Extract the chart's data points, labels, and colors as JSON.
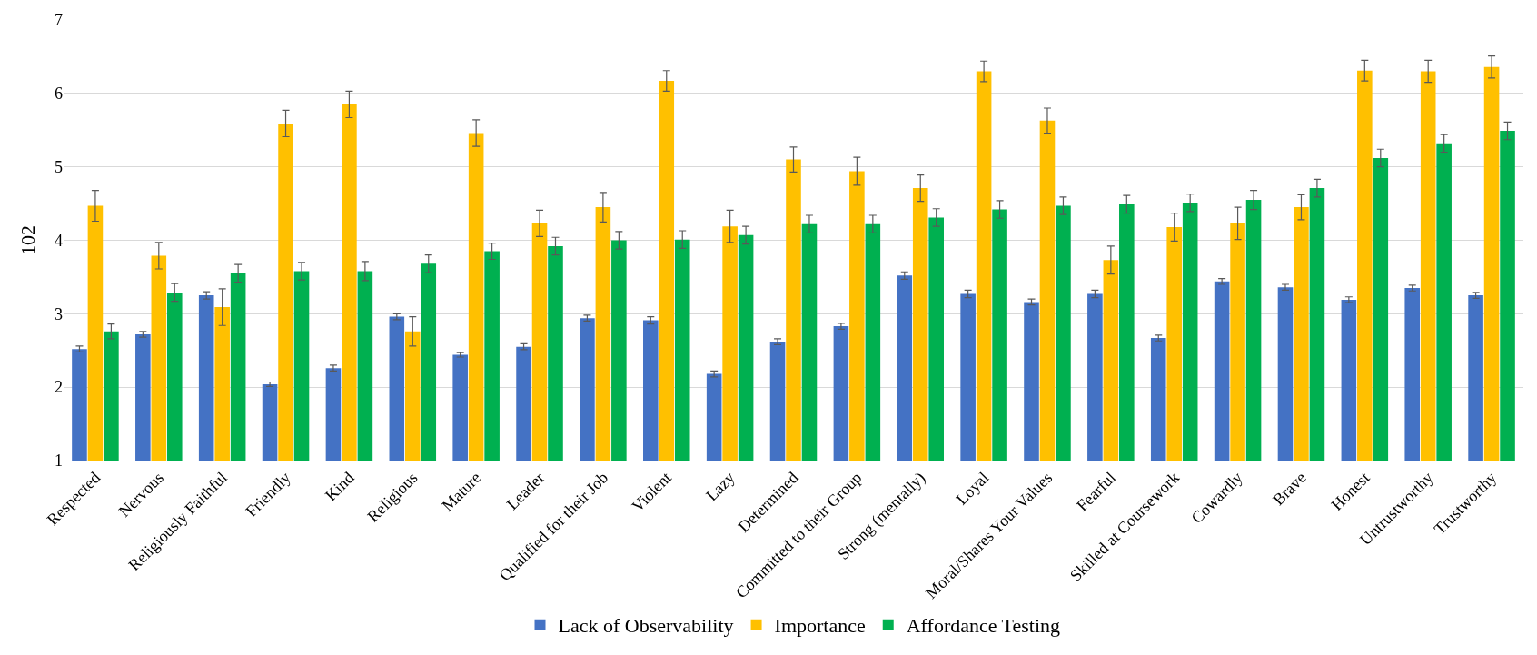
{
  "chart_data": {
    "type": "bar",
    "ylabel": "102",
    "categories": [
      "Respected",
      "Nervous",
      "Religiously Faithful",
      "Friendly",
      "Kind",
      "Religious",
      "Mature",
      "Leader",
      "Qualified for their Job",
      "Violent",
      "Lazy",
      "Determined",
      "Committed to their Group",
      "Strong (mentally)",
      "Loyal",
      "Moral/Shares Your Values",
      "Fearful",
      "Skilled at Coursework",
      "Cowardly",
      "Brave",
      "Honest",
      "Untrustworthy",
      "Trustworthy"
    ],
    "series": [
      {
        "name": "Lack of Observability",
        "color": "#4472c4",
        "values": [
          2.52,
          2.72,
          3.25,
          2.04,
          2.26,
          2.96,
          2.44,
          2.55,
          2.94,
          2.91,
          2.18,
          2.62,
          2.83,
          3.52,
          3.27,
          3.16,
          3.27,
          2.67,
          3.44,
          3.36,
          3.19,
          3.35,
          3.25
        ],
        "errors": [
          0.04,
          0.04,
          0.05,
          0.03,
          0.04,
          0.04,
          0.03,
          0.04,
          0.04,
          0.05,
          0.04,
          0.04,
          0.04,
          0.05,
          0.05,
          0.04,
          0.05,
          0.04,
          0.04,
          0.04,
          0.04,
          0.04,
          0.04
        ]
      },
      {
        "name": "Importance",
        "color": "#ffc000",
        "values": [
          4.47,
          3.79,
          3.09,
          5.59,
          5.85,
          2.76,
          5.46,
          4.23,
          4.45,
          6.17,
          4.19,
          5.1,
          4.94,
          4.71,
          6.3,
          5.63,
          3.73,
          4.18,
          4.23,
          4.45,
          6.31,
          6.3,
          6.36
        ],
        "errors": [
          0.21,
          0.18,
          0.25,
          0.18,
          0.18,
          0.2,
          0.18,
          0.18,
          0.2,
          0.14,
          0.22,
          0.17,
          0.19,
          0.18,
          0.14,
          0.17,
          0.19,
          0.19,
          0.22,
          0.17,
          0.14,
          0.15,
          0.15
        ]
      },
      {
        "name": "Affordance Testing",
        "color": "#00b050",
        "values": [
          2.76,
          3.29,
          3.55,
          3.58,
          3.58,
          3.68,
          3.85,
          3.92,
          4.0,
          4.01,
          4.07,
          4.22,
          4.22,
          4.31,
          4.42,
          4.47,
          4.49,
          4.51,
          4.55,
          4.71,
          5.12,
          5.32,
          5.49
        ],
        "errors": [
          0.1,
          0.12,
          0.12,
          0.12,
          0.13,
          0.12,
          0.11,
          0.12,
          0.12,
          0.12,
          0.12,
          0.12,
          0.12,
          0.12,
          0.12,
          0.12,
          0.12,
          0.12,
          0.13,
          0.12,
          0.12,
          0.12,
          0.12
        ]
      }
    ],
    "ylim": [
      1,
      7
    ],
    "yticks": [
      1,
      2,
      3,
      4,
      5,
      6,
      7
    ],
    "grid": "y",
    "legend": "bottom"
  }
}
